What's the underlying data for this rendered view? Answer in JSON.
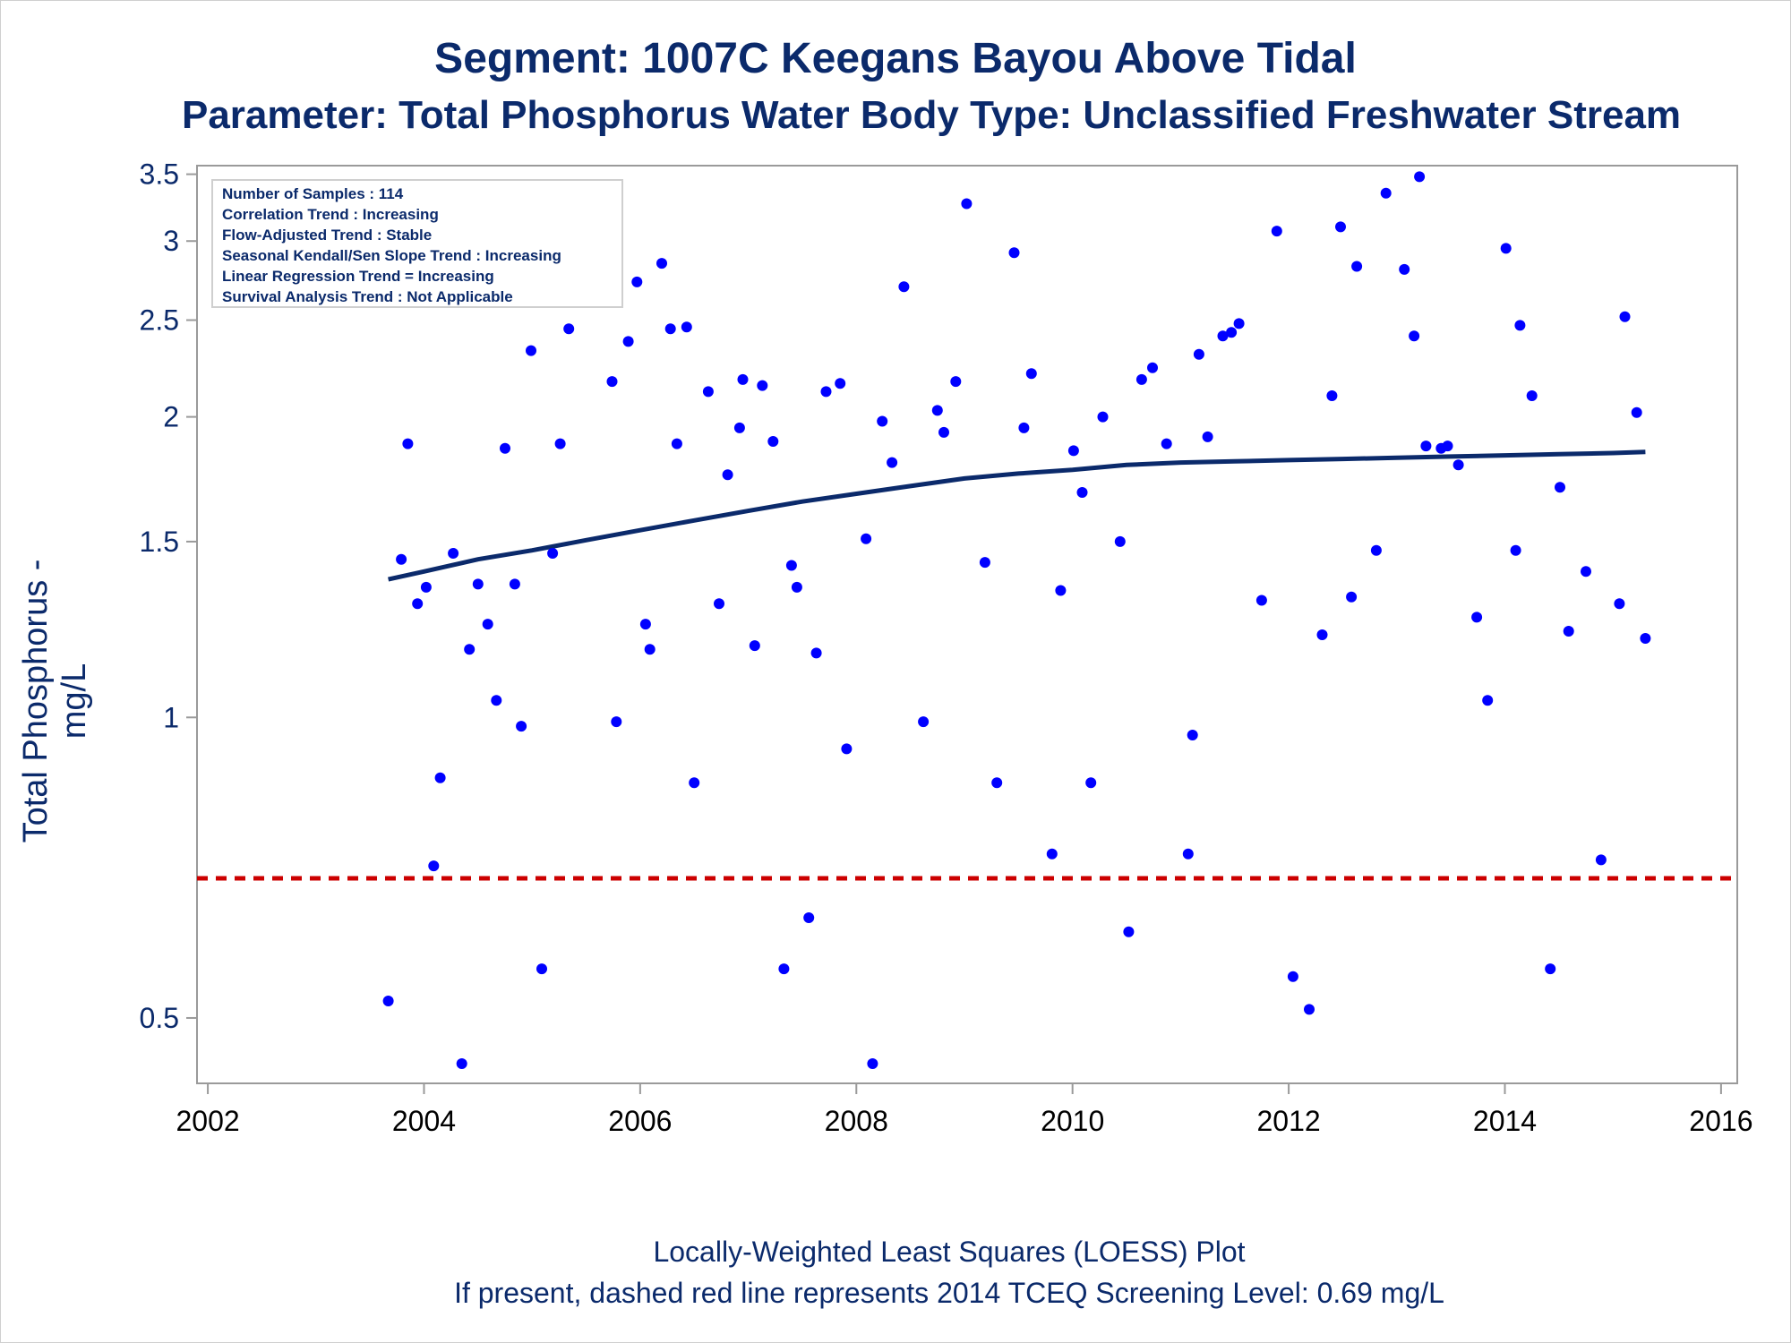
{
  "chart_data": {
    "type": "scatter",
    "title": "Segment: 1007C  Keegans Bayou Above Tidal",
    "subtitle": "Parameter: Total Phosphorus   Water Body Type: Unclassified Freshwater Stream",
    "xlabel": "",
    "ylabel": "Total Phosphorus - mg/L",
    "x_ticks": [
      "2002",
      "2004",
      "2006",
      "2008",
      "2010",
      "2012",
      "2014",
      "2016"
    ],
    "x_tick_values": [
      2002,
      2004,
      2006,
      2008,
      2010,
      2012,
      2014,
      2016
    ],
    "y_ticks": [
      "0.5",
      "1",
      "1.5",
      "2",
      "2.5",
      "3",
      "3.5"
    ],
    "y_tick_values": [
      0.5,
      1,
      1.5,
      2,
      2.5,
      3,
      3.5
    ],
    "xlim": [
      2001.9,
      2016.15
    ],
    "ylim": [
      0.43,
      3.57
    ],
    "y_scale": "log",
    "grid": false,
    "legend_position": "top-left",
    "point_color": "#0000ff",
    "loess_color": "#0b2a6b",
    "screening_color": "#cc0000",
    "screening_level": 0.69,
    "series": [
      {
        "type": "scatter",
        "points": [
          [
            2003.67,
            0.52
          ],
          [
            2003.79,
            1.44
          ],
          [
            2003.85,
            1.88
          ],
          [
            2003.94,
            1.3
          ],
          [
            2004.02,
            1.35
          ],
          [
            2004.09,
            0.71
          ],
          [
            2004.15,
            0.87
          ],
          [
            2004.27,
            1.46
          ],
          [
            2004.35,
            0.45
          ],
          [
            2004.42,
            1.17
          ],
          [
            2004.5,
            1.36
          ],
          [
            2004.59,
            1.24
          ],
          [
            2004.67,
            1.04
          ],
          [
            2004.75,
            1.86
          ],
          [
            2004.84,
            1.36
          ],
          [
            2004.9,
            0.98
          ],
          [
            2004.99,
            2.33
          ],
          [
            2005.09,
            0.56
          ],
          [
            2005.19,
            1.46
          ],
          [
            2005.26,
            1.88
          ],
          [
            2005.34,
            2.45
          ],
          [
            2005.74,
            2.17
          ],
          [
            2005.78,
            0.99
          ],
          [
            2005.89,
            2.38
          ],
          [
            2005.97,
            2.73
          ],
          [
            2006.05,
            1.24
          ],
          [
            2006.09,
            1.17
          ],
          [
            2006.2,
            2.85
          ],
          [
            2006.28,
            2.45
          ],
          [
            2006.34,
            1.88
          ],
          [
            2006.43,
            2.46
          ],
          [
            2006.5,
            0.86
          ],
          [
            2006.63,
            2.12
          ],
          [
            2006.73,
            1.3
          ],
          [
            2006.81,
            1.75
          ],
          [
            2006.92,
            1.95
          ],
          [
            2006.95,
            2.18
          ],
          [
            2007.06,
            1.18
          ],
          [
            2007.13,
            2.15
          ],
          [
            2007.23,
            1.89
          ],
          [
            2007.33,
            0.56
          ],
          [
            2007.4,
            1.42
          ],
          [
            2007.45,
            1.35
          ],
          [
            2007.56,
            0.63
          ],
          [
            2007.63,
            1.16
          ],
          [
            2007.72,
            2.12
          ],
          [
            2007.85,
            2.16
          ],
          [
            2007.91,
            0.93
          ],
          [
            2008.09,
            1.51
          ],
          [
            2008.15,
            0.45
          ],
          [
            2008.24,
            1.98
          ],
          [
            2008.33,
            1.8
          ],
          [
            2008.44,
            2.7
          ],
          [
            2008.62,
            0.99
          ],
          [
            2008.75,
            2.03
          ],
          [
            2008.81,
            1.93
          ],
          [
            2008.92,
            2.17
          ],
          [
            2009.02,
            3.27
          ],
          [
            2009.19,
            1.43
          ],
          [
            2009.3,
            0.86
          ],
          [
            2009.46,
            2.92
          ],
          [
            2009.55,
            1.95
          ],
          [
            2009.62,
            2.21
          ],
          [
            2009.81,
            0.73
          ],
          [
            2009.89,
            1.34
          ],
          [
            2010.01,
            1.85
          ],
          [
            2010.09,
            1.68
          ],
          [
            2010.17,
            0.86
          ],
          [
            2010.28,
            2.0
          ],
          [
            2010.44,
            1.5
          ],
          [
            2010.52,
            0.61
          ],
          [
            2010.64,
            2.18
          ],
          [
            2010.74,
            2.24
          ],
          [
            2010.87,
            1.88
          ],
          [
            2011.07,
            0.73
          ],
          [
            2011.11,
            0.96
          ],
          [
            2011.17,
            2.31
          ],
          [
            2011.25,
            1.91
          ],
          [
            2011.39,
            2.41
          ],
          [
            2011.47,
            2.43
          ],
          [
            2011.54,
            2.48
          ],
          [
            2011.75,
            1.31
          ],
          [
            2011.89,
            3.07
          ],
          [
            2012.04,
            0.55
          ],
          [
            2012.19,
            0.51
          ],
          [
            2012.31,
            1.21
          ],
          [
            2012.4,
            2.1
          ],
          [
            2012.48,
            3.1
          ],
          [
            2012.58,
            1.32
          ],
          [
            2012.63,
            2.83
          ],
          [
            2012.81,
            1.47
          ],
          [
            2012.9,
            3.35
          ],
          [
            2013.07,
            2.81
          ],
          [
            2013.16,
            2.41
          ],
          [
            2013.21,
            3.48
          ],
          [
            2013.27,
            1.87
          ],
          [
            2013.41,
            1.86
          ],
          [
            2013.47,
            1.87
          ],
          [
            2013.57,
            1.79
          ],
          [
            2013.74,
            1.26
          ],
          [
            2013.84,
            1.04
          ],
          [
            2014.01,
            2.95
          ],
          [
            2014.1,
            1.47
          ],
          [
            2014.14,
            2.47
          ],
          [
            2014.25,
            2.1
          ],
          [
            2014.42,
            0.56
          ],
          [
            2014.51,
            1.7
          ],
          [
            2014.59,
            1.22
          ],
          [
            2014.75,
            1.4
          ],
          [
            2014.89,
            0.72
          ],
          [
            2015.06,
            1.3
          ],
          [
            2015.11,
            2.52
          ],
          [
            2015.22,
            2.02
          ],
          [
            2015.3,
            1.2
          ]
        ]
      },
      {
        "type": "line",
        "points": [
          [
            2003.67,
            1.375
          ],
          [
            2004.0,
            1.4
          ],
          [
            2004.5,
            1.44
          ],
          [
            2005.0,
            1.47
          ],
          [
            2005.5,
            1.505
          ],
          [
            2006.0,
            1.54
          ],
          [
            2006.5,
            1.575
          ],
          [
            2007.0,
            1.61
          ],
          [
            2007.5,
            1.645
          ],
          [
            2008.0,
            1.675
          ],
          [
            2008.5,
            1.705
          ],
          [
            2009.0,
            1.735
          ],
          [
            2009.5,
            1.755
          ],
          [
            2010.0,
            1.77
          ],
          [
            2010.5,
            1.79
          ],
          [
            2011.0,
            1.8
          ],
          [
            2011.5,
            1.805
          ],
          [
            2012.0,
            1.81
          ],
          [
            2012.5,
            1.815
          ],
          [
            2013.0,
            1.82
          ],
          [
            2013.5,
            1.825
          ],
          [
            2014.0,
            1.83
          ],
          [
            2014.5,
            1.835
          ],
          [
            2015.0,
            1.84
          ],
          [
            2015.3,
            1.845
          ]
        ]
      }
    ]
  },
  "info_box": {
    "lines": [
      "Number of Samples : 114",
      "Correlation Trend : Increasing",
      "Flow-Adjusted Trend : Stable",
      "Seasonal Kendall/Sen Slope Trend : Increasing",
      "Linear Regression Trend = Increasing",
      "Survival Analysis Trend : Not Applicable"
    ]
  },
  "footnote": {
    "line1": "Locally-Weighted Least Squares (LOESS) Plot",
    "line2": "If present, dashed red line represents 2014 TCEQ Screening Level: 0.69 mg/L"
  }
}
